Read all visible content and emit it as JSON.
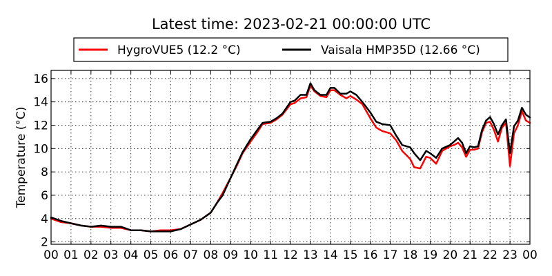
{
  "chart_data": {
    "type": "line",
    "title": "Latest time: 2023-02-21 00:00:00 UTC",
    "xlabel": "",
    "ylabel": "Temperature (°C)",
    "xlim": [
      0,
      24
    ],
    "ylim": [
      1.8,
      16.7
    ],
    "xtick_values": [
      0,
      1,
      2,
      3,
      4,
      5,
      6,
      7,
      8,
      9,
      10,
      11,
      12,
      13,
      14,
      15,
      16,
      17,
      18,
      19,
      20,
      21,
      22,
      23,
      24
    ],
    "xtick_labels": [
      "00",
      "01",
      "02",
      "03",
      "04",
      "05",
      "06",
      "07",
      "08",
      "09",
      "10",
      "11",
      "12",
      "13",
      "14",
      "15",
      "16",
      "17",
      "18",
      "19",
      "20",
      "21",
      "22",
      "23",
      "00"
    ],
    "ytick_values": [
      2,
      4,
      6,
      8,
      10,
      12,
      14,
      16
    ],
    "ytick_labels": [
      "2",
      "4",
      "6",
      "8",
      "10",
      "12",
      "14",
      "16"
    ],
    "grid": true,
    "legend_position": "top-center",
    "series": [
      {
        "name": "HygroVUE5 (12.2 °C)",
        "color": "#ff0000",
        "x": [
          0,
          0.5,
          1,
          1.5,
          2,
          2.5,
          3,
          3.5,
          4,
          4.5,
          5,
          5.5,
          6,
          6.5,
          7,
          7.5,
          8,
          8.3,
          8.6,
          9,
          9.3,
          9.6,
          10,
          10.3,
          10.6,
          11,
          11.3,
          11.6,
          12,
          12.2,
          12.5,
          12.8,
          13,
          13.2,
          13.5,
          13.8,
          14,
          14.2,
          14.5,
          14.8,
          15,
          15.3,
          15.6,
          16,
          16.3,
          16.6,
          17,
          17.3,
          17.6,
          18,
          18.2,
          18.5,
          18.8,
          19,
          19.3,
          19.6,
          20,
          20.2,
          20.4,
          20.6,
          20.8,
          21,
          21.2,
          21.4,
          21.6,
          21.8,
          22,
          22.2,
          22.4,
          22.6,
          22.8,
          23,
          23.2,
          23.4,
          23.6,
          23.8,
          24
        ],
        "y": [
          4.0,
          3.7,
          3.6,
          3.4,
          3.3,
          3.3,
          3.2,
          3.2,
          3.0,
          3.0,
          2.9,
          3.0,
          3.0,
          3.1,
          3.5,
          3.9,
          4.5,
          5.3,
          6.2,
          7.5,
          8.5,
          9.6,
          10.6,
          11.3,
          12.1,
          12.2,
          12.5,
          12.9,
          13.8,
          13.9,
          14.3,
          14.4,
          15.4,
          14.9,
          14.5,
          14.4,
          15.0,
          15.0,
          14.6,
          14.3,
          14.5,
          14.2,
          13.8,
          12.6,
          11.8,
          11.5,
          11.3,
          10.7,
          9.8,
          9.1,
          8.4,
          8.3,
          9.3,
          9.2,
          8.7,
          9.8,
          10.2,
          10.3,
          10.5,
          10.1,
          9.3,
          9.9,
          9.9,
          10.0,
          11.4,
          12.2,
          12.3,
          11.6,
          10.6,
          11.8,
          12.2,
          8.5,
          11.3,
          12.0,
          13.2,
          12.4,
          12.2
        ]
      },
      {
        "name": "Vaisala HMP35D (12.66 °C)",
        "color": "#000000",
        "x": [
          0,
          0.5,
          1,
          1.5,
          2,
          2.5,
          3,
          3.5,
          4,
          4.5,
          5,
          5.5,
          6,
          6.5,
          7,
          7.5,
          8,
          8.3,
          8.6,
          9,
          9.3,
          9.6,
          10,
          10.3,
          10.6,
          11,
          11.3,
          11.6,
          12,
          12.2,
          12.5,
          12.8,
          13,
          13.2,
          13.5,
          13.8,
          14,
          14.2,
          14.5,
          14.8,
          15,
          15.3,
          15.6,
          16,
          16.3,
          16.6,
          17,
          17.3,
          17.6,
          18,
          18.2,
          18.5,
          18.8,
          19,
          19.3,
          19.6,
          20,
          20.2,
          20.4,
          20.6,
          20.8,
          21,
          21.2,
          21.4,
          21.6,
          21.8,
          22,
          22.2,
          22.4,
          22.6,
          22.8,
          23,
          23.2,
          23.4,
          23.6,
          23.8,
          24
        ],
        "y": [
          4.1,
          3.8,
          3.6,
          3.4,
          3.3,
          3.4,
          3.3,
          3.3,
          3.0,
          3.0,
          2.9,
          2.9,
          2.9,
          3.1,
          3.5,
          3.9,
          4.5,
          5.3,
          6.0,
          7.5,
          8.6,
          9.7,
          10.8,
          11.5,
          12.2,
          12.3,
          12.6,
          13.0,
          14.0,
          14.1,
          14.6,
          14.6,
          15.6,
          15.0,
          14.6,
          14.6,
          15.2,
          15.2,
          14.7,
          14.7,
          14.9,
          14.6,
          14.0,
          13.1,
          12.3,
          12.1,
          12.0,
          11.1,
          10.3,
          10.1,
          9.6,
          9.0,
          9.8,
          9.6,
          9.2,
          10.0,
          10.3,
          10.6,
          10.9,
          10.5,
          9.6,
          10.2,
          10.1,
          10.2,
          11.6,
          12.4,
          12.7,
          12.1,
          11.2,
          12.0,
          12.5,
          9.6,
          11.9,
          12.4,
          13.5,
          12.9,
          12.66
        ]
      }
    ]
  }
}
